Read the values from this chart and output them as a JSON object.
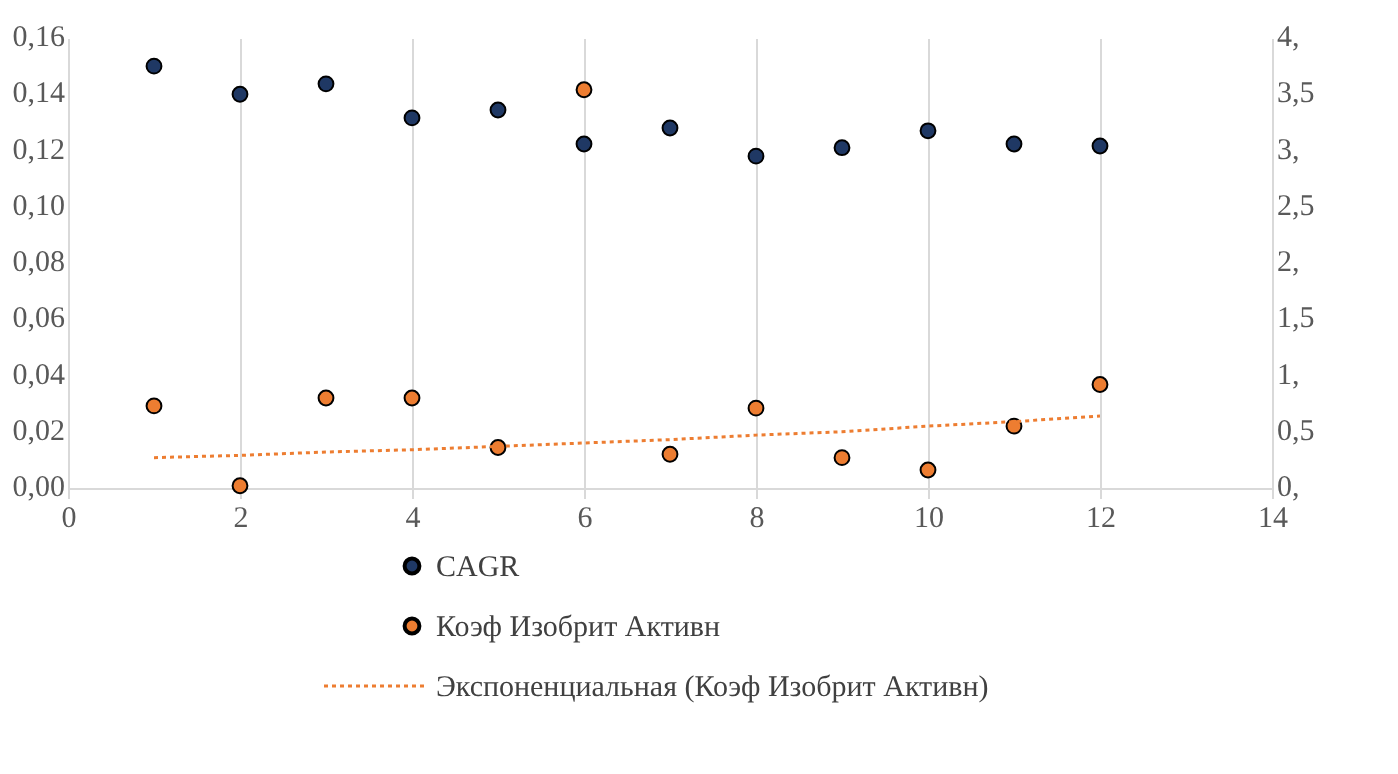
{
  "chart_data": {
    "type": "scatter",
    "x": [
      1,
      2,
      3,
      4,
      5,
      6,
      7,
      8,
      9,
      10,
      11,
      12
    ],
    "series": [
      {
        "name": "CAGR",
        "color": "#1f3864",
        "marker": "circle",
        "values": [
          0.15,
          0.14,
          0.1437,
          0.1316,
          0.1344,
          0.1223,
          0.128,
          0.118,
          0.121,
          0.127,
          0.1223,
          0.1216
        ]
      },
      {
        "name": "Коэф Изобрит Активн",
        "color": "#ed7d31",
        "marker": "circle",
        "axis": "y2",
        "values": [
          0.73,
          0.02,
          0.8,
          0.8,
          0.36,
          3.54,
          0.3,
          0.71,
          0.27,
          0.16,
          0.55,
          0.92
        ]
      },
      {
        "name": "Экспоненциальная (Коэф Изобрит Активн)",
        "type": "line",
        "line_style": "dotted",
        "marker": "none",
        "color": "#ed7d31",
        "axis": "y2",
        "x": [
          1,
          2,
          3,
          4,
          5,
          6,
          7,
          8,
          9,
          10,
          11,
          12
        ],
        "values": [
          0.27,
          0.29,
          0.32,
          0.34,
          0.37,
          0.4,
          0.43,
          0.47,
          0.5,
          0.55,
          0.59,
          0.64
        ]
      }
    ],
    "xlim": [
      0,
      14
    ],
    "xticks": [
      0,
      2,
      4,
      6,
      8,
      10,
      12,
      14
    ],
    "ylim": [
      0,
      0.16
    ],
    "yticks": [
      {
        "value": 0,
        "label": "0,00"
      },
      {
        "value": 0.02,
        "label": "0,02"
      },
      {
        "value": 0.04,
        "label": "0,04"
      },
      {
        "value": 0.06,
        "label": "0,06"
      },
      {
        "value": 0.08,
        "label": "0,08"
      },
      {
        "value": 0.1,
        "label": "0,10"
      },
      {
        "value": 0.12,
        "label": "0,12"
      },
      {
        "value": 0.14,
        "label": "0,14"
      },
      {
        "value": 0.16,
        "label": "0,16"
      }
    ],
    "y2lim": [
      0,
      4
    ],
    "y2ticks": [
      {
        "value": 0,
        "label": "0,"
      },
      {
        "value": 0.5,
        "label": "0,5"
      },
      {
        "value": 1,
        "label": "1,"
      },
      {
        "value": 1.5,
        "label": "1,5"
      },
      {
        "value": 2,
        "label": "2,"
      },
      {
        "value": 2.5,
        "label": "2,5"
      },
      {
        "value": 3,
        "label": "3,"
      },
      {
        "value": 3.5,
        "label": "3,5"
      },
      {
        "value": 4,
        "label": "4,"
      }
    ],
    "grid": "x",
    "legend": "bottom"
  }
}
